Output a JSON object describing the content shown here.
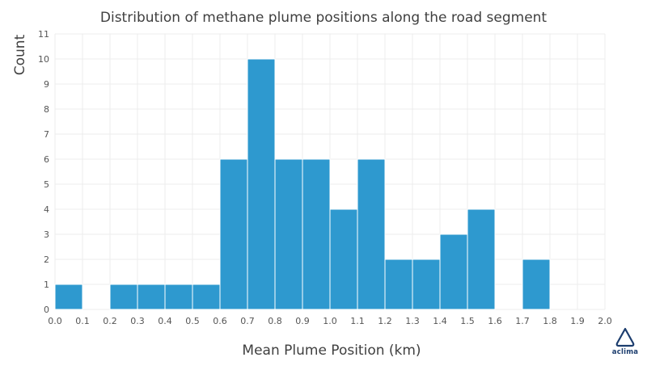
{
  "chart_data": {
    "type": "bar",
    "title": "Distribution of methane plume positions along the road segment",
    "xlabel": "Mean Plume Position (km)",
    "ylabel": "Count",
    "bin_width": 0.1,
    "bins": [
      {
        "x0": 0.0,
        "x1": 0.1,
        "value": 1
      },
      {
        "x0": 0.1,
        "x1": 0.2,
        "value": 0
      },
      {
        "x0": 0.2,
        "x1": 0.3,
        "value": 1
      },
      {
        "x0": 0.3,
        "x1": 0.4,
        "value": 1
      },
      {
        "x0": 0.4,
        "x1": 0.5,
        "value": 1
      },
      {
        "x0": 0.5,
        "x1": 0.6,
        "value": 1
      },
      {
        "x0": 0.6,
        "x1": 0.7,
        "value": 6
      },
      {
        "x0": 0.7,
        "x1": 0.8,
        "value": 10
      },
      {
        "x0": 0.8,
        "x1": 0.9,
        "value": 6
      },
      {
        "x0": 0.9,
        "x1": 1.0,
        "value": 6
      },
      {
        "x0": 1.0,
        "x1": 1.1,
        "value": 4
      },
      {
        "x0": 1.1,
        "x1": 1.2,
        "value": 6
      },
      {
        "x0": 1.2,
        "x1": 1.3,
        "value": 2
      },
      {
        "x0": 1.3,
        "x1": 1.4,
        "value": 2
      },
      {
        "x0": 1.4,
        "x1": 1.5,
        "value": 3
      },
      {
        "x0": 1.5,
        "x1": 1.6,
        "value": 4
      },
      {
        "x0": 1.6,
        "x1": 1.7,
        "value": 0
      },
      {
        "x0": 1.7,
        "x1": 1.8,
        "value": 2
      },
      {
        "x0": 1.8,
        "x1": 1.9,
        "value": 0
      },
      {
        "x0": 1.9,
        "x1": 2.0,
        "value": 0
      }
    ],
    "xticks": [
      "0.0",
      "0.1",
      "0.2",
      "0.3",
      "0.4",
      "0.5",
      "0.6",
      "0.7",
      "0.8",
      "0.9",
      "1.0",
      "1.1",
      "1.2",
      "1.3",
      "1.4",
      "1.5",
      "1.6",
      "1.7",
      "1.8",
      "1.9",
      "2.0"
    ],
    "yticks": [
      "0",
      "1",
      "2",
      "3",
      "4",
      "5",
      "6",
      "7",
      "8",
      "9",
      "10",
      "11"
    ],
    "xlim": [
      0.0,
      2.0
    ],
    "ylim": [
      0,
      11
    ],
    "grid": true,
    "bar_color": "#2e99cf",
    "grid_color": "#ececec"
  },
  "logo": {
    "text": "aclima",
    "color": "#1c3d6e"
  }
}
